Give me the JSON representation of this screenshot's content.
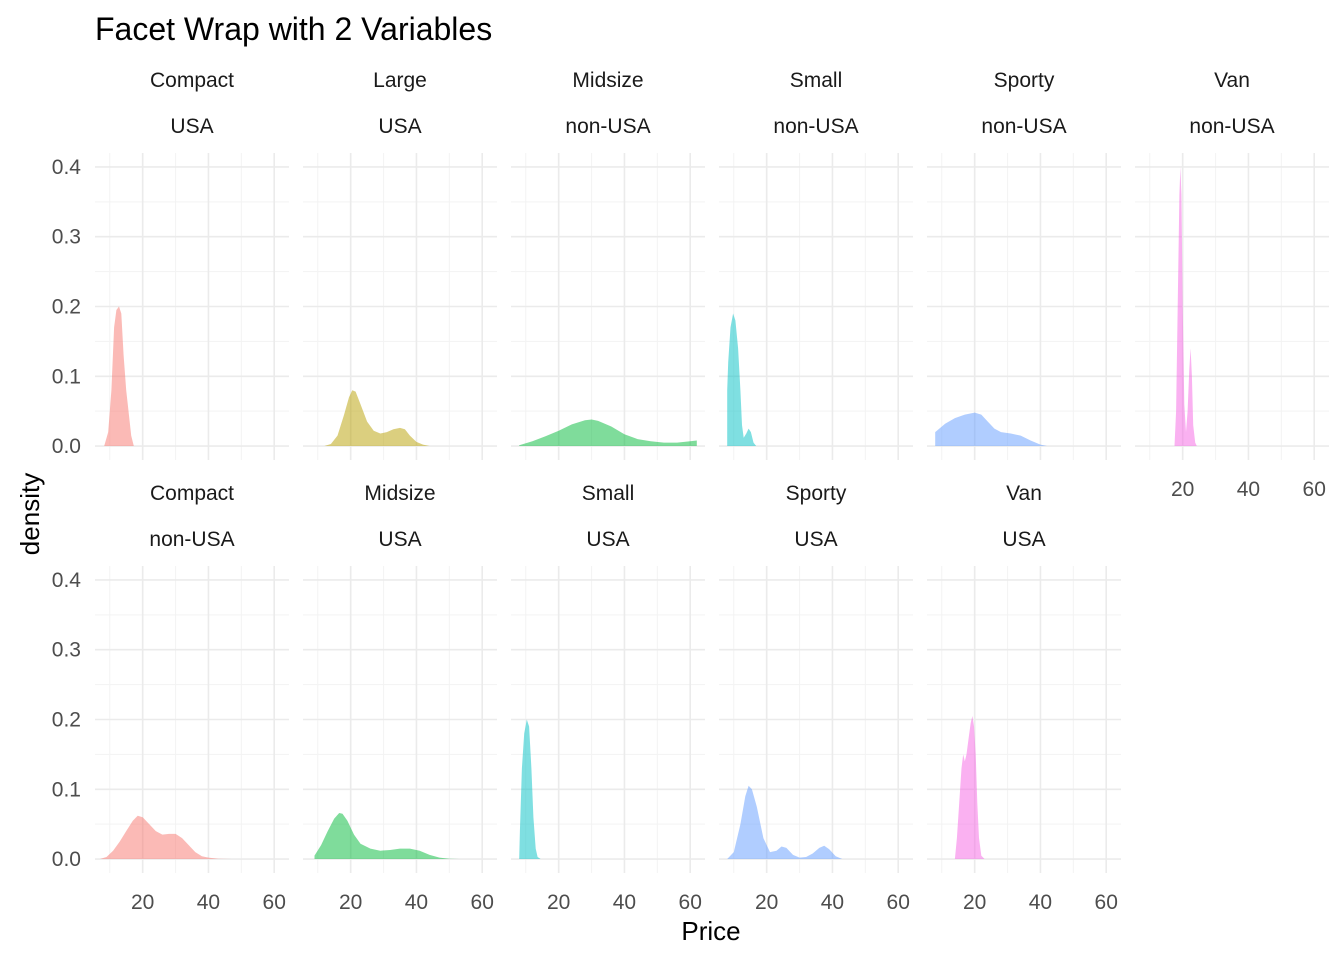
{
  "chart_data": {
    "type": "area",
    "title": "Facet Wrap with 2 Variables",
    "xlabel": "Price",
    "ylabel": "density",
    "xlim": [
      5.5,
      64.5
    ],
    "ylim": [
      -0.02,
      0.42
    ],
    "x_ticks": [
      20,
      40,
      60
    ],
    "y_ticks": [
      0.0,
      0.1,
      0.2,
      0.3,
      0.4
    ],
    "y_tick_labels": [
      "0.0",
      "0.1",
      "0.2",
      "0.3",
      "0.4"
    ],
    "grid": true,
    "legend": "none",
    "colors": {
      "Compact": "#F8766D",
      "Large": "#B79F00",
      "Midsize": "#00BA38",
      "Small": "#00BFC4",
      "Sporty": "#619CFF",
      "Van": "#F564E3"
    },
    "fill_opacity": 0.5,
    "facets": [
      {
        "type_label": "Compact",
        "origin_label": "USA",
        "row": 0,
        "col": 0,
        "x": [
          8.3,
          9.5,
          10.5,
          11.3,
          12.0,
          12.8,
          13.5,
          14.2,
          15.0,
          15.8,
          16.5,
          17.3
        ],
        "y": [
          0.0,
          0.02,
          0.08,
          0.17,
          0.195,
          0.2,
          0.19,
          0.13,
          0.08,
          0.045,
          0.015,
          0.0
        ]
      },
      {
        "type_label": "Large",
        "origin_label": "USA",
        "row": 0,
        "col": 1,
        "x": [
          12.0,
          14.0,
          16.0,
          18.0,
          19.5,
          20.5,
          21.5,
          23.0,
          25.0,
          27.0,
          29.0,
          31.0,
          33.0,
          35.0,
          36.5,
          38.0,
          40.0,
          42.0,
          44.0
        ],
        "y": [
          0.0,
          0.003,
          0.015,
          0.045,
          0.07,
          0.08,
          0.078,
          0.06,
          0.035,
          0.022,
          0.018,
          0.02,
          0.024,
          0.026,
          0.024,
          0.015,
          0.006,
          0.002,
          0.0
        ]
      },
      {
        "type_label": "Midsize",
        "origin_label": "non-USA",
        "row": 0,
        "col": 2,
        "x": [
          8.0,
          12.0,
          16.0,
          20.0,
          24.0,
          28.0,
          30.0,
          32.0,
          36.0,
          40.0,
          44.0,
          48.0,
          52.0,
          56.0,
          60.0,
          62.0
        ],
        "y": [
          0.001,
          0.007,
          0.014,
          0.022,
          0.031,
          0.037,
          0.038,
          0.036,
          0.028,
          0.017,
          0.01,
          0.007,
          0.005,
          0.005,
          0.007,
          0.008
        ]
      },
      {
        "type_label": "Small",
        "origin_label": "non-USA",
        "row": 0,
        "col": 3,
        "x": [
          8.0,
          8.3,
          9.0,
          9.8,
          10.5,
          11.3,
          12.0,
          12.5,
          13.0,
          13.8,
          14.5,
          15.2,
          16.0,
          16.8
        ],
        "y": [
          0.08,
          0.12,
          0.17,
          0.19,
          0.18,
          0.14,
          0.08,
          0.03,
          0.012,
          0.018,
          0.025,
          0.02,
          0.005,
          0.0
        ]
      },
      {
        "type_label": "Sporty",
        "origin_label": "non-USA",
        "row": 0,
        "col": 4,
        "x": [
          8.0,
          11.0,
          14.0,
          17.0,
          20.0,
          22.0,
          24.0,
          26.0,
          28.0,
          31.0,
          34.0,
          37.0,
          40.0,
          42.0
        ],
        "y": [
          0.02,
          0.032,
          0.04,
          0.045,
          0.048,
          0.045,
          0.035,
          0.025,
          0.02,
          0.018,
          0.015,
          0.008,
          0.002,
          0.0
        ]
      },
      {
        "type_label": "Van",
        "origin_label": "non-USA",
        "row": 0,
        "col": 5,
        "x": [
          17.5,
          18.0,
          18.5,
          19.0,
          19.3,
          19.6,
          20.0,
          20.5,
          21.0,
          21.5,
          22.0,
          22.4,
          22.8,
          23.2,
          23.8,
          24.3
        ],
        "y": [
          0.0,
          0.05,
          0.2,
          0.36,
          0.4,
          0.36,
          0.2,
          0.06,
          0.02,
          0.05,
          0.11,
          0.14,
          0.1,
          0.03,
          0.005,
          0.0
        ]
      },
      {
        "type_label": "Compact",
        "origin_label": "non-USA",
        "row": 1,
        "col": 0,
        "x": [
          7.0,
          9.0,
          11.0,
          13.0,
          15.0,
          17.0,
          18.5,
          20.0,
          22.0,
          24.0,
          26.0,
          28.0,
          30.0,
          32.0,
          34.0,
          36.0,
          38.0,
          40.0,
          43.0,
          47.0
        ],
        "y": [
          0.0,
          0.003,
          0.012,
          0.025,
          0.04,
          0.055,
          0.062,
          0.06,
          0.05,
          0.04,
          0.035,
          0.036,
          0.036,
          0.03,
          0.02,
          0.01,
          0.004,
          0.002,
          0.0005,
          0.0
        ]
      },
      {
        "type_label": "Midsize",
        "origin_label": "USA",
        "row": 1,
        "col": 1,
        "x": [
          9.0,
          11.0,
          13.0,
          15.0,
          16.5,
          17.5,
          19.0,
          21.0,
          23.0,
          26.0,
          29.0,
          32.0,
          35.0,
          38.0,
          41.0,
          44.0,
          47.0,
          50.0,
          53.0
        ],
        "y": [
          0.005,
          0.02,
          0.04,
          0.058,
          0.066,
          0.065,
          0.055,
          0.035,
          0.022,
          0.015,
          0.012,
          0.013,
          0.015,
          0.015,
          0.012,
          0.006,
          0.002,
          0.0005,
          0.0
        ]
      },
      {
        "type_label": "Small",
        "origin_label": "USA",
        "row": 1,
        "col": 2,
        "x": [
          8.0,
          8.2,
          8.8,
          9.5,
          10.3,
          11.0,
          11.7,
          12.3,
          13.0,
          13.6,
          14.5
        ],
        "y": [
          0.0,
          0.04,
          0.13,
          0.18,
          0.2,
          0.19,
          0.13,
          0.06,
          0.015,
          0.003,
          0.0
        ]
      },
      {
        "type_label": "Sporty",
        "origin_label": "USA",
        "row": 1,
        "col": 3,
        "x": [
          8.0,
          10.0,
          12.0,
          13.5,
          14.5,
          15.5,
          17.0,
          19.0,
          21.0,
          23.0,
          24.5,
          26.0,
          28.0,
          30.0,
          32.0,
          34.0,
          36.0,
          37.5,
          39.0,
          41.0,
          43.0
        ],
        "y": [
          0.0,
          0.01,
          0.05,
          0.09,
          0.105,
          0.1,
          0.075,
          0.03,
          0.01,
          0.012,
          0.018,
          0.016,
          0.006,
          0.002,
          0.003,
          0.008,
          0.016,
          0.019,
          0.014,
          0.004,
          0.0
        ]
      },
      {
        "type_label": "Van",
        "origin_label": "USA",
        "row": 1,
        "col": 4,
        "x": [
          14.0,
          14.6,
          15.3,
          16.0,
          16.5,
          17.0,
          17.5,
          18.2,
          18.8,
          19.3,
          19.8,
          20.3,
          20.8,
          21.3,
          22.0,
          23.0
        ],
        "y": [
          0.0,
          0.03,
          0.08,
          0.13,
          0.15,
          0.14,
          0.15,
          0.175,
          0.195,
          0.205,
          0.19,
          0.15,
          0.08,
          0.03,
          0.005,
          0.0
        ]
      }
    ]
  }
}
